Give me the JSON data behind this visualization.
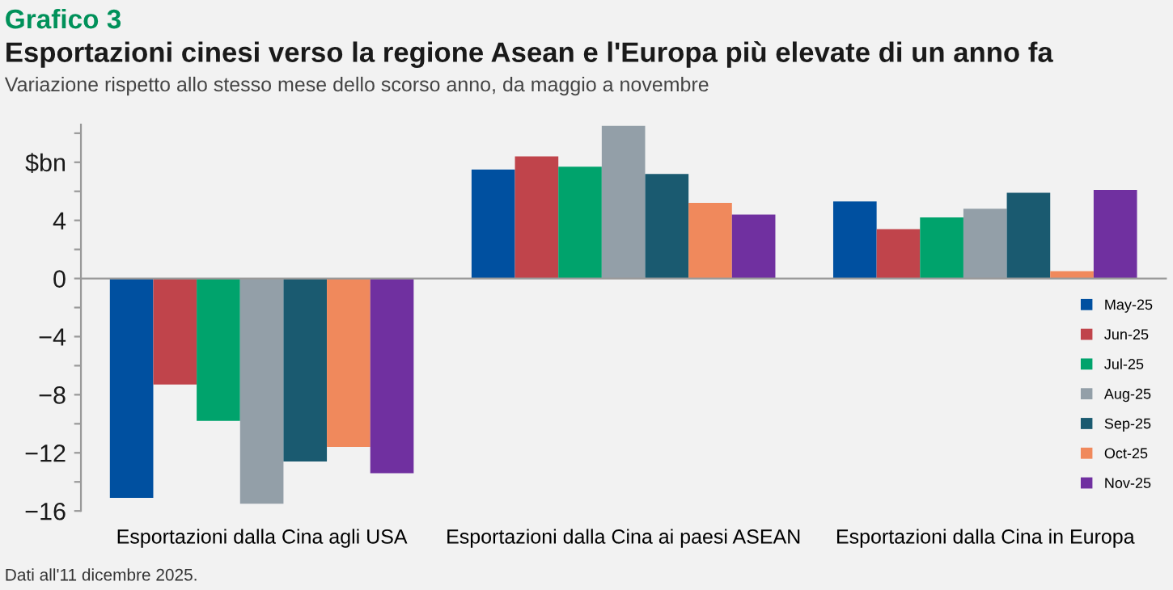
{
  "chart_data": {
    "type": "bar",
    "title": "Esportazioni cinesi verso la regione Asean e l'Europa più elevate di un anno fa",
    "subtitle": "Variazione rispetto allo stesso mese dello scorso anno, da maggio a novembre",
    "annotations": [
      "Grafico 3",
      "Dati all'11 dicembre 2025."
    ],
    "categories": [
      "Esportazioni dalla Cina agli USA",
      "Esportazioni dalla Cina ai paesi ASEAN",
      "Esportazioni dalla Cina in Europa"
    ],
    "series": [
      {
        "name": "May-25",
        "color": "#0050a0",
        "values": [
          -15.1,
          7.5,
          5.3
        ]
      },
      {
        "name": "Jun-25",
        "color": "#c0444b",
        "values": [
          -7.3,
          8.4,
          3.4
        ]
      },
      {
        "name": "Jul-25",
        "color": "#00a36c",
        "values": [
          -9.8,
          7.7,
          4.2
        ]
      },
      {
        "name": "Aug-25",
        "color": "#939fa8",
        "values": [
          -15.5,
          10.5,
          4.8
        ]
      },
      {
        "name": "Sep-25",
        "color": "#1a5a70",
        "values": [
          -12.6,
          7.2,
          5.9
        ]
      },
      {
        "name": "Oct-25",
        "color": "#f0895c",
        "values": [
          -11.6,
          5.2,
          0.5
        ]
      },
      {
        "name": "Nov-25",
        "color": "#7030a0",
        "values": [
          -13.4,
          4.4,
          6.1
        ]
      }
    ],
    "ylim": [
      -16,
      10.6
    ],
    "yticks": [
      -16,
      {
        "value": -14,
        "label": null
      },
      -12,
      {
        "value": -10,
        "label": null
      },
      -8,
      {
        "value": -6,
        "label": null
      },
      -4,
      {
        "value": -2,
        "label": null
      },
      0,
      {
        "value": 2,
        "label": null
      },
      4,
      {
        "value": 6,
        "label": null
      },
      {
        "value": 8,
        "label": "$bn"
      },
      {
        "value": 10,
        "label": null
      }
    ],
    "legend": "right"
  }
}
